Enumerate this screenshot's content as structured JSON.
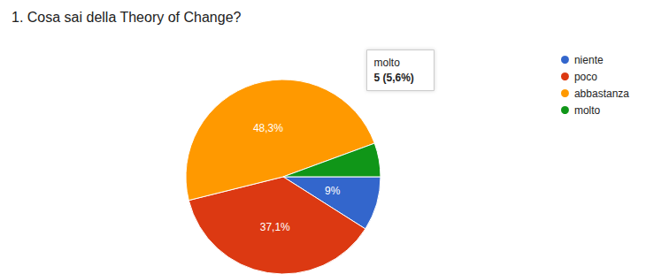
{
  "chart_data": {
    "type": "pie",
    "title": "1. Cosa sai della Theory of Change?",
    "categories": [
      "niente",
      "poco",
      "abbastanza",
      "molto"
    ],
    "values": [
      9,
      37.1,
      48.3,
      5.6
    ],
    "value_labels": [
      "9%",
      "37,1%",
      "48,3%",
      null
    ],
    "colors": [
      "#3366cc",
      "#dc3912",
      "#ff9900",
      "#109618"
    ],
    "data_labels": true,
    "legend": "right",
    "annotations": [
      {
        "category": "molto",
        "text": "5 (5,6%)"
      }
    ]
  }
}
